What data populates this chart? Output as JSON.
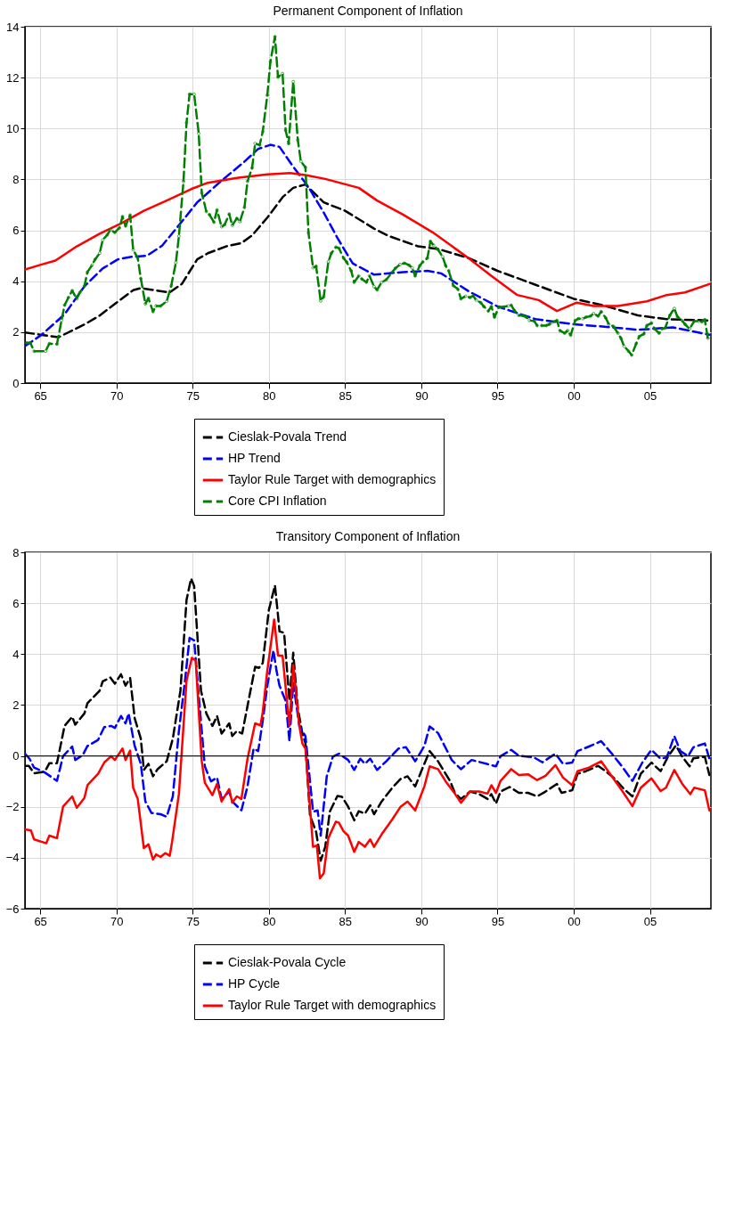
{
  "chart_data": [
    {
      "type": "line",
      "title": "Permanent Component of Inflation",
      "xlim": [
        1964,
        2009
      ],
      "ylim": [
        0,
        14
      ],
      "yticks": [
        0,
        2,
        4,
        6,
        8,
        10,
        12,
        14
      ],
      "xticks": [
        {
          "value": 1965,
          "label": "65"
        },
        {
          "value": 1970,
          "label": "70"
        },
        {
          "value": 1975,
          "label": "75"
        },
        {
          "value": 1980,
          "label": "80"
        },
        {
          "value": 1985,
          "label": "85"
        },
        {
          "value": 1990,
          "label": "90"
        },
        {
          "value": 1995,
          "label": "95"
        },
        {
          "value": 2000,
          "label": "00"
        },
        {
          "value": 2005,
          "label": "05"
        }
      ],
      "grid": true,
      "legend": "bottom",
      "series": [
        {
          "name": "Cieslak-Povala Trend",
          "color": "#000000",
          "line_style": "dashed",
          "x": [
            1964.0,
            1965.0,
            1966.2,
            1967.9,
            1968.9,
            1970.1,
            1971.1,
            1971.6,
            1972.4,
            1973.5,
            1974.3,
            1975.3,
            1976.0,
            1977.2,
            1978.2,
            1978.9,
            1979.9,
            1980.9,
            1981.6,
            1982.4,
            1983.6,
            1985.0,
            1986.9,
            1987.9,
            1989.8,
            1991.1,
            1993.1,
            1995.0,
            1997.5,
            2000.0,
            2001.9,
            2004.2,
            2006.1,
            2008.9
          ],
          "values": [
            1.99,
            1.9,
            1.8,
            2.3,
            2.65,
            3.2,
            3.65,
            3.73,
            3.66,
            3.56,
            3.9,
            4.86,
            5.1,
            5.37,
            5.5,
            5.8,
            6.5,
            7.3,
            7.67,
            7.8,
            7.1,
            6.77,
            6.07,
            5.77,
            5.37,
            5.27,
            4.91,
            4.41,
            3.86,
            3.31,
            3.06,
            2.66,
            2.51,
            2.46
          ]
        },
        {
          "name": "HP Trend",
          "color": "#0000ff",
          "line_style": "dashed",
          "x": [
            1964.0,
            1965.1,
            1966.6,
            1967.9,
            1969.1,
            1970.1,
            1971.0,
            1972.0,
            1973.0,
            1974.1,
            1975.3,
            1976.8,
            1978.4,
            1979.3,
            1980.1,
            1980.7,
            1981.6,
            1982.6,
            1983.6,
            1984.5,
            1985.5,
            1986.9,
            1988.8,
            1990.4,
            1991.3,
            1993.1,
            1995.0,
            1997.5,
            2000.0,
            2002.3,
            2004.2,
            2006.5,
            2008.9
          ],
          "values": [
            1.45,
            1.9,
            2.7,
            3.8,
            4.5,
            4.86,
            4.96,
            5.0,
            5.4,
            6.2,
            7.1,
            7.9,
            8.7,
            9.2,
            9.36,
            9.28,
            8.5,
            7.7,
            6.7,
            5.7,
            4.7,
            4.26,
            4.36,
            4.41,
            4.31,
            3.61,
            3.01,
            2.51,
            2.31,
            2.2,
            2.09,
            2.19,
            1.9
          ]
        },
        {
          "name": "Taylor Rule Target with demographics",
          "color": "#ff0000",
          "line_style": "solid",
          "x": [
            1964.0,
            1965.1,
            1966.0,
            1967.4,
            1968.9,
            1970.3,
            1971.8,
            1973.3,
            1974.9,
            1976.0,
            1978.0,
            1979.9,
            1981.4,
            1982.4,
            1983.7,
            1985.9,
            1987.1,
            1988.8,
            1990.75,
            1993.1,
            1994.6,
            1996.3,
            1997.7,
            1998.9,
            2000.2,
            2001.3,
            2002.9,
            2004.8,
            2006.1,
            2007.3,
            2008.9
          ],
          "values": [
            4.46,
            4.66,
            4.81,
            5.37,
            5.87,
            6.27,
            6.77,
            7.17,
            7.62,
            7.87,
            8.07,
            8.2,
            8.25,
            8.17,
            8.02,
            7.67,
            7.17,
            6.62,
            5.92,
            4.91,
            4.21,
            3.46,
            3.26,
            2.83,
            3.16,
            3.03,
            3.03,
            3.21,
            3.46,
            3.56,
            3.89
          ]
        },
        {
          "name": "Core CPI Inflation",
          "color": "#008000",
          "line_style": "dashed",
          "marker": "circle",
          "x": [
            1964.1,
            1964.35,
            1964.6,
            1965.35,
            1965.6,
            1966.1,
            1966.4,
            1966.6,
            1966.85,
            1967.1,
            1967.4,
            1967.6,
            1967.9,
            1968.1,
            1968.4,
            1968.6,
            1968.9,
            1969.1,
            1969.4,
            1969.6,
            1969.9,
            1970.2,
            1970.4,
            1970.6,
            1970.9,
            1971.1,
            1971.4,
            1971.6,
            1971.9,
            1972.1,
            1972.4,
            1972.6,
            1972.9,
            1973.3,
            1973.6,
            1973.9,
            1974.1,
            1974.4,
            1974.6,
            1974.8,
            1975.1,
            1975.4,
            1975.6,
            1975.9,
            1976.1,
            1976.4,
            1976.6,
            1976.9,
            1977.1,
            1977.4,
            1977.6,
            1977.9,
            1978.1,
            1978.4,
            1978.6,
            1978.9,
            1979.1,
            1979.4,
            1979.6,
            1979.9,
            1980.1,
            1980.4,
            1980.6,
            1980.9,
            1981.1,
            1981.3,
            1981.6,
            1981.9,
            1982.1,
            1982.4,
            1982.6,
            1982.9,
            1983.1,
            1983.4,
            1983.6,
            1983.9,
            1984.1,
            1984.4,
            1984.6,
            1984.9,
            1985.1,
            1985.4,
            1985.6,
            1985.9,
            1986.1,
            1986.4,
            1986.6,
            1986.9,
            1987.1,
            1987.4,
            1987.7,
            1988.1,
            1988.3,
            1988.6,
            1988.9,
            1989.2,
            1989.4,
            1989.6,
            1989.9,
            1990.1,
            1990.4,
            1990.6,
            1990.8,
            1991.1,
            1991.4,
            1991.6,
            1991.8,
            1992.1,
            1992.4,
            1992.6,
            1992.9,
            1993.2,
            1993.4,
            1993.6,
            1993.9,
            1994.1,
            1994.4,
            1994.6,
            1994.8,
            1995.1,
            1995.4,
            1995.7,
            1995.9,
            1996.1,
            1996.4,
            1996.6,
            1996.9,
            1997.1,
            1997.4,
            1997.6,
            1997.9,
            1998.2,
            1998.4,
            1998.6,
            1998.9,
            1999.1,
            1999.4,
            1999.6,
            1999.8,
            2000.1,
            2000.3,
            2000.6,
            2000.8,
            2001.1,
            2001.3,
            2001.6,
            2001.8,
            2002.1,
            2002.3,
            2002.6,
            2002.9,
            2003.1,
            2003.3,
            2003.6,
            2003.8,
            2004.1,
            2004.3,
            2004.6,
            2004.8,
            2005.1,
            2005.3,
            2005.6,
            2005.8,
            2006.0,
            2006.3,
            2006.6,
            2006.8,
            2007.1,
            2007.3,
            2007.6,
            2007.9,
            2008.2,
            2008.4,
            2008.6,
            2008.8
          ],
          "values": [
            1.58,
            1.58,
            1.25,
            1.25,
            1.55,
            1.53,
            2.46,
            3.06,
            3.36,
            3.63,
            3.31,
            3.56,
            3.81,
            4.36,
            4.63,
            4.86,
            5.1,
            5.62,
            5.82,
            6.02,
            5.92,
            6.1,
            6.54,
            6.17,
            6.6,
            5.24,
            4.91,
            4.11,
            3.11,
            3.33,
            2.81,
            3.03,
            3.03,
            3.21,
            3.83,
            4.73,
            5.77,
            7.92,
            10.23,
            11.35,
            11.35,
            9.81,
            7.47,
            6.74,
            6.62,
            6.32,
            6.8,
            6.14,
            6.22,
            6.64,
            6.2,
            6.47,
            6.34,
            6.9,
            7.92,
            8.45,
            9.41,
            9.35,
            9.88,
            11.31,
            12.62,
            13.61,
            12.02,
            12.16,
            9.93,
            9.41,
            11.84,
            9.55,
            8.71,
            8.48,
            5.9,
            4.53,
            4.59,
            3.23,
            3.39,
            4.76,
            5.1,
            5.34,
            5.3,
            4.91,
            4.76,
            4.41,
            3.96,
            4.21,
            4.09,
            3.96,
            4.21,
            3.79,
            3.66,
            3.96,
            4.06,
            4.36,
            4.51,
            4.66,
            4.71,
            4.63,
            4.53,
            4.21,
            4.61,
            4.76,
            4.91,
            5.57,
            5.42,
            5.24,
            4.96,
            4.61,
            4.41,
            3.83,
            3.69,
            3.31,
            3.41,
            3.36,
            3.43,
            3.26,
            3.16,
            3.01,
            2.83,
            3.01,
            2.59,
            2.99,
            2.99,
            3.03,
            3.06,
            2.86,
            2.66,
            2.66,
            2.59,
            2.46,
            2.44,
            2.26,
            2.26,
            2.26,
            2.31,
            2.39,
            2.46,
            2.06,
            1.96,
            2.06,
            1.88,
            2.46,
            2.53,
            2.53,
            2.59,
            2.63,
            2.73,
            2.63,
            2.81,
            2.56,
            2.31,
            2.23,
            1.96,
            1.76,
            1.45,
            1.25,
            1.1,
            1.55,
            1.83,
            1.93,
            2.26,
            2.36,
            2.13,
            1.96,
            2.13,
            2.16,
            2.66,
            2.93,
            2.61,
            2.46,
            2.31,
            2.13,
            2.43,
            2.43,
            2.41,
            2.49,
            1.76
          ]
        }
      ]
    },
    {
      "type": "line",
      "title": "Transitory Component of Inflation",
      "xlim": [
        1964,
        2009
      ],
      "ylim": [
        -6,
        8
      ],
      "yticks": [
        -6,
        -4,
        -2,
        0,
        2,
        4,
        6,
        8
      ],
      "xticks": [
        {
          "value": 1965,
          "label": "65"
        },
        {
          "value": 1970,
          "label": "70"
        },
        {
          "value": 1975,
          "label": "75"
        },
        {
          "value": 1980,
          "label": "80"
        },
        {
          "value": 1985,
          "label": "85"
        },
        {
          "value": 1990,
          "label": "90"
        },
        {
          "value": 1995,
          "label": "95"
        },
        {
          "value": 2000,
          "label": "00"
        },
        {
          "value": 2005,
          "label": "05"
        }
      ],
      "grid": true,
      "legend": "bottom",
      "ref_lines": [
        {
          "axis": "y",
          "value": 0,
          "color": "#000000"
        }
      ],
      "series": [
        {
          "name": "Cieslak-Povala Cycle",
          "color": "#000000",
          "line_style": "dashed",
          "x": [
            1964.0,
            1964.25,
            1964.6,
            1965.3,
            1965.6,
            1966.1,
            1966.6,
            1967.1,
            1967.3,
            1967.9,
            1968.1,
            1968.9,
            1969.1,
            1969.6,
            1969.9,
            1970.3,
            1970.6,
            1970.9,
            1971.2,
            1971.6,
            1971.8,
            1972.1,
            1972.4,
            1972.7,
            1973.3,
            1973.7,
            1974.2,
            1974.6,
            1974.9,
            1975.1,
            1975.55,
            1975.9,
            1976.3,
            1976.6,
            1976.9,
            1977.4,
            1977.6,
            1977.9,
            1978.25,
            1978.7,
            1979.1,
            1979.35,
            1979.6,
            1980.0,
            1980.4,
            1980.6,
            1980.7,
            1981.0,
            1981.35,
            1981.6,
            1981.9,
            1982.2,
            1982.4,
            1982.7,
            1983.1,
            1983.4,
            1983.7,
            1984.0,
            1984.5,
            1984.8,
            1985.2,
            1985.6,
            1985.9,
            1986.3,
            1986.65,
            1986.9,
            1987.4,
            1988.1,
            1988.65,
            1989.1,
            1989.6,
            1990.0,
            1990.55,
            1991.1,
            1991.9,
            1992.2,
            1992.6,
            1993.2,
            1993.8,
            1994.35,
            1994.6,
            1994.9,
            1995.2,
            1995.8,
            1996.4,
            1997.0,
            1997.6,
            1998.15,
            1998.9,
            1999.2,
            1999.9,
            2000.25,
            2000.8,
            2001.6,
            2002.05,
            2002.7,
            2003.3,
            2003.85,
            2004.4,
            2005.1,
            2005.7,
            2006.2,
            2006.7,
            2007.1,
            2007.6,
            2007.85,
            2008.6,
            2008.9
          ],
          "values": [
            -0.39,
            -0.39,
            -0.68,
            -0.62,
            -0.29,
            -0.29,
            1.18,
            1.54,
            1.23,
            1.67,
            2.07,
            2.56,
            2.93,
            3.08,
            2.84,
            3.21,
            2.76,
            3.06,
            1.48,
            0.68,
            -0.55,
            -0.31,
            -0.8,
            -0.52,
            -0.21,
            0.68,
            2.56,
            6.13,
            6.97,
            6.67,
            2.56,
            1.67,
            1.18,
            1.57,
            0.88,
            1.28,
            0.78,
            0.98,
            0.88,
            2.27,
            3.5,
            3.46,
            3.65,
            5.73,
            6.7,
            5.53,
            4.89,
            4.84,
            2.17,
            4.05,
            1.87,
            0.88,
            0.5,
            -2.34,
            -2.98,
            -4.12,
            -3.57,
            -2.19,
            -1.57,
            -1.61,
            -1.99,
            -2.53,
            -2.17,
            -2.27,
            -1.94,
            -2.29,
            -1.79,
            -1.25,
            -0.9,
            -0.8,
            -1.2,
            -0.6,
            0.19,
            -0.21,
            -1.0,
            -1.45,
            -1.69,
            -1.4,
            -1.5,
            -1.69,
            -1.5,
            -1.87,
            -1.4,
            -1.22,
            -1.45,
            -1.45,
            -1.59,
            -1.4,
            -1.1,
            -1.45,
            -1.35,
            -0.7,
            -0.6,
            -0.39,
            -0.58,
            -0.9,
            -1.3,
            -1.59,
            -0.7,
            -0.26,
            -0.6,
            -0.01,
            0.41,
            -0.01,
            -0.41,
            -0.09,
            -0.03,
            -0.75
          ]
        },
        {
          "name": "HP Cycle",
          "color": "#0000ff",
          "line_style": "dashed",
          "x": [
            1964.0,
            1964.3,
            1964.6,
            1965.3,
            1966.1,
            1966.5,
            1967.1,
            1967.3,
            1967.8,
            1968.1,
            1968.8,
            1969.2,
            1969.65,
            1969.9,
            1970.3,
            1970.6,
            1970.8,
            1971.2,
            1971.6,
            1971.9,
            1972.3,
            1972.9,
            1973.3,
            1973.7,
            1974.1,
            1974.5,
            1974.8,
            1975.1,
            1975.4,
            1975.8,
            1976.2,
            1976.6,
            1976.9,
            1977.4,
            1977.6,
            1978.2,
            1978.6,
            1979.0,
            1979.3,
            1979.6,
            1979.9,
            1980.3,
            1980.5,
            1980.7,
            1981.1,
            1981.35,
            1981.6,
            1982.0,
            1982.4,
            1982.9,
            1983.2,
            1983.4,
            1983.8,
            1984.2,
            1984.6,
            1985.2,
            1985.6,
            1986.0,
            1986.3,
            1986.65,
            1987.1,
            1987.7,
            1988.5,
            1989.0,
            1989.6,
            1990.2,
            1990.55,
            1991.1,
            1992.0,
            1992.6,
            1993.3,
            1994.3,
            1994.9,
            1995.2,
            1995.9,
            1996.4,
            1997.4,
            1997.95,
            1998.8,
            1999.3,
            1999.9,
            2000.25,
            2001.0,
            2001.8,
            2002.5,
            2003.1,
            2003.85,
            2004.5,
            2005.1,
            2005.7,
            2006.1,
            2006.6,
            2007.0,
            2007.5,
            2007.85,
            2008.6,
            2008.9
          ],
          "values": [
            0.09,
            -0.11,
            -0.46,
            -0.65,
            -0.98,
            -0.01,
            0.37,
            -0.16,
            0.04,
            0.39,
            0.63,
            1.13,
            1.18,
            1.1,
            1.57,
            1.28,
            1.67,
            0.39,
            -0.31,
            -1.79,
            -2.24,
            -2.29,
            -2.39,
            -1.59,
            0.98,
            2.96,
            4.64,
            4.54,
            2.37,
            -0.41,
            -1.0,
            -0.85,
            -1.69,
            -1.4,
            -1.79,
            -2.14,
            -1.2,
            0.29,
            0.19,
            1.38,
            2.76,
            4.15,
            3.36,
            2.76,
            2.17,
            0.58,
            2.86,
            1.18,
            0.78,
            -2.19,
            -2.14,
            -3.13,
            -0.8,
            -0.03,
            0.09,
            -0.16,
            -0.55,
            -0.11,
            -0.31,
            -0.11,
            -0.55,
            -0.21,
            0.29,
            0.34,
            -0.21,
            0.39,
            1.16,
            0.9,
            -0.16,
            -0.52,
            -0.16,
            -0.31,
            -0.41,
            -0.01,
            0.24,
            0.01,
            -0.06,
            -0.25,
            0.09,
            -0.31,
            -0.26,
            0.19,
            0.37,
            0.58,
            0.09,
            -0.36,
            -0.98,
            -0.26,
            0.24,
            -0.11,
            -0.06,
            0.78,
            0.19,
            -0.01,
            0.34,
            0.49,
            -0.11
          ]
        },
        {
          "name": "Taylor Rule Target with demographics",
          "color": "#ff0000",
          "line_style": "solid",
          "x": [
            1964.0,
            1964.4,
            1964.6,
            1965.4,
            1965.6,
            1966.1,
            1966.5,
            1967.1,
            1967.4,
            1967.9,
            1968.1,
            1968.8,
            1969.2,
            1969.65,
            1969.9,
            1970.4,
            1970.6,
            1970.9,
            1971.1,
            1971.4,
            1971.8,
            1972.1,
            1972.4,
            1972.6,
            1972.9,
            1973.2,
            1973.5,
            1973.65,
            1974.1,
            1974.6,
            1974.95,
            1975.2,
            1975.6,
            1975.8,
            1976.3,
            1976.6,
            1976.9,
            1977.4,
            1977.6,
            1977.9,
            1978.2,
            1978.6,
            1979.1,
            1979.45,
            1979.6,
            1979.9,
            1980.35,
            1980.6,
            1980.9,
            1981.35,
            1981.6,
            1982.0,
            1982.2,
            1982.4,
            1982.9,
            1983.15,
            1983.35,
            1983.6,
            1983.9,
            1984.4,
            1984.6,
            1984.9,
            1985.2,
            1985.6,
            1985.9,
            1986.3,
            1986.65,
            1986.9,
            1987.4,
            1988.1,
            1988.65,
            1989.1,
            1989.6,
            1990.2,
            1990.55,
            1991.1,
            1991.6,
            1992.2,
            1992.6,
            1993.2,
            1993.8,
            1994.35,
            1994.6,
            1994.9,
            1995.2,
            1995.9,
            1996.4,
            1997.0,
            1997.6,
            1998.15,
            1998.8,
            1999.3,
            1999.9,
            2000.25,
            2001.0,
            2001.8,
            2002.5,
            2003.1,
            2003.85,
            2004.4,
            2005.1,
            2005.7,
            2006.05,
            2006.6,
            2007.1,
            2007.65,
            2007.9,
            2008.6,
            2008.9
          ],
          "values": [
            -2.88,
            -2.93,
            -3.28,
            -3.43,
            -3.13,
            -3.23,
            -1.99,
            -1.59,
            -2.04,
            -1.65,
            -1.15,
            -0.7,
            -0.26,
            -0.01,
            -0.16,
            0.29,
            -0.16,
            0.21,
            -1.25,
            -1.69,
            -3.62,
            -3.47,
            -4.07,
            -3.87,
            -3.97,
            -3.82,
            -3.92,
            -3.38,
            -1.5,
            2.96,
            3.85,
            3.75,
            -0.21,
            -1.05,
            -1.54,
            -1.1,
            -1.79,
            -1.3,
            -1.84,
            -1.59,
            -1.69,
            -0.11,
            1.28,
            1.2,
            1.72,
            3.36,
            5.36,
            3.95,
            3.93,
            1.18,
            3.57,
            1.18,
            0.49,
            0.29,
            -3.57,
            -3.52,
            -4.81,
            -4.61,
            -3.23,
            -2.58,
            -2.63,
            -2.96,
            -3.13,
            -3.77,
            -3.38,
            -3.57,
            -3.28,
            -3.57,
            -3.08,
            -2.49,
            -1.99,
            -1.79,
            -2.14,
            -1.2,
            -0.41,
            -0.52,
            -1.0,
            -1.48,
            -1.84,
            -1.4,
            -1.4,
            -1.48,
            -1.15,
            -1.45,
            -0.98,
            -0.52,
            -0.75,
            -0.72,
            -0.95,
            -0.78,
            -0.36,
            -0.85,
            -1.15,
            -0.6,
            -0.46,
            -0.21,
            -0.8,
            -1.3,
            -1.97,
            -1.25,
            -0.88,
            -1.38,
            -1.25,
            -0.55,
            -1.08,
            -1.5,
            -1.25,
            -1.35,
            -2.14
          ]
        }
      ]
    }
  ]
}
